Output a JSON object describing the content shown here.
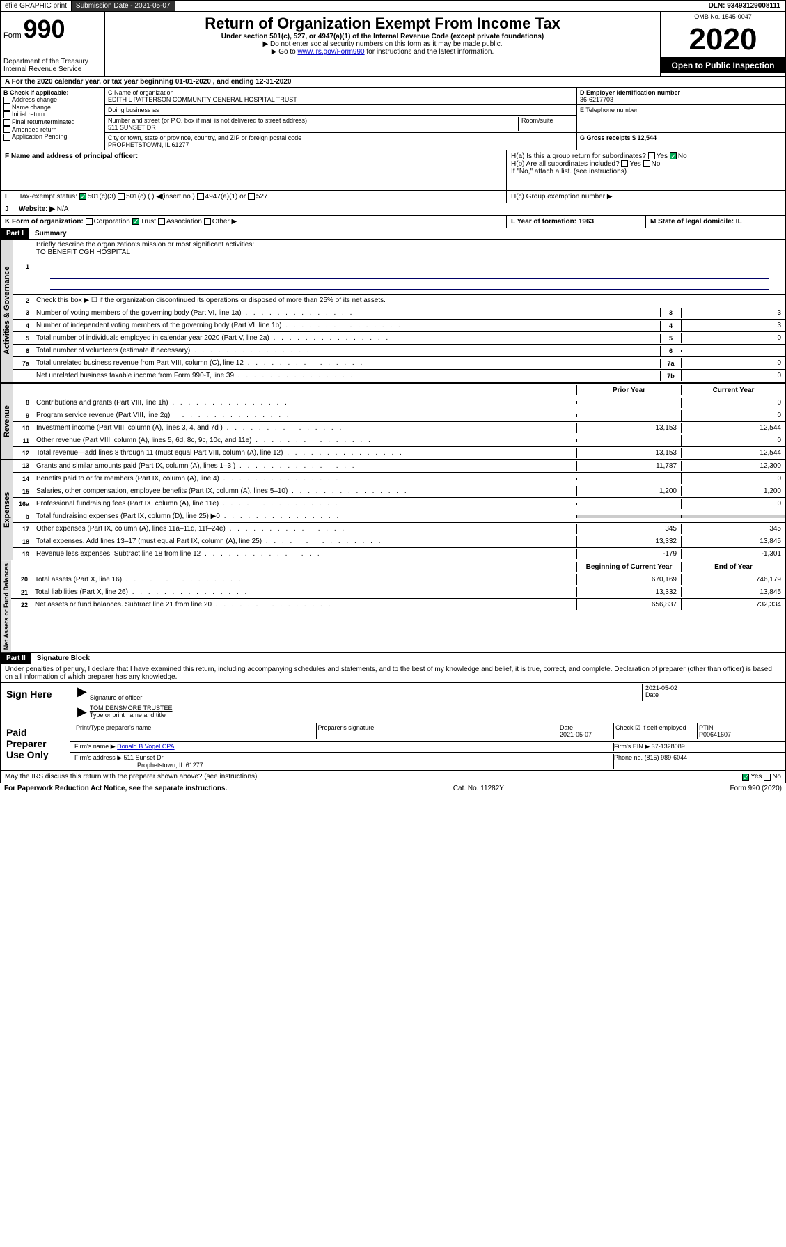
{
  "topbar": {
    "efile": "efile GRAPHIC print",
    "submission": "Submission Date - 2021-05-07",
    "dln": "DLN: 93493129008111"
  },
  "header": {
    "form_label": "Form",
    "form_num": "990",
    "dept": "Department of the Treasury\nInternal Revenue Service",
    "title": "Return of Organization Exempt From Income Tax",
    "subtitle": "Under section 501(c), 527, or 4947(a)(1) of the Internal Revenue Code (except private foundations)",
    "note1": "▶ Do not enter social security numbers on this form as it may be made public.",
    "note2_pre": "▶ Go to ",
    "note2_link": "www.irs.gov/Form990",
    "note2_post": " for instructions and the latest information.",
    "omb": "OMB No. 1545-0047",
    "year": "2020",
    "open": "Open to Public Inspection"
  },
  "sectionA": "A   For the 2020 calendar year, or tax year beginning 01-01-2020    , and ending 12-31-2020",
  "boxB": {
    "label": "B Check if applicable:",
    "items": [
      "Address change",
      "Name change",
      "Initial return",
      "Final return/terminated",
      "Amended return",
      "Application Pending"
    ]
  },
  "boxC": {
    "name_label": "C Name of organization",
    "name": "EDITH L PATTERSON COMMUNITY GENERAL HOSPITAL TRUST",
    "dba": "Doing business as",
    "addr_label": "Number and street (or P.O. box if mail is not delivered to street address)",
    "addr": "511 SUNSET DR",
    "room": "Room/suite",
    "city_label": "City or town, state or province, country, and ZIP or foreign postal code",
    "city": "PROPHETSTOWN, IL  61277"
  },
  "boxD": {
    "label": "D Employer identification number",
    "value": "36-6217703"
  },
  "boxE": {
    "label": "E Telephone number"
  },
  "boxG": {
    "label": "G Gross receipts $ 12,544"
  },
  "boxF": "F  Name and address of principal officer:",
  "boxH": {
    "ha": "H(a)  Is this a group return for subordinates?",
    "hb": "H(b)  Are all subordinates included?",
    "hb_note": "If \"No,\" attach a list. (see instructions)",
    "hc": "H(c)  Group exemption number ▶",
    "yes": "Yes",
    "no": "No"
  },
  "boxI": {
    "label": "Tax-exempt status:",
    "opts": [
      "501(c)(3)",
      "501(c) (  ) ◀(insert no.)",
      "4947(a)(1) or",
      "527"
    ]
  },
  "boxJ": {
    "label": "Website: ▶",
    "value": "N/A"
  },
  "boxK": {
    "label": "K Form of organization:",
    "opts": [
      "Corporation",
      "Trust",
      "Association",
      "Other ▶"
    ]
  },
  "boxL": {
    "label": "L Year of formation: 1963"
  },
  "boxM": {
    "label": "M State of legal domicile: IL"
  },
  "part1": {
    "header": "Part I",
    "title": "Summary",
    "line1": "Briefly describe the organization's mission or most significant activities:",
    "mission": "TO BENEFIT CGH HOSPITAL",
    "line2": "Check this box ▶ ☐  if the organization discontinued its operations or disposed of more than 25% of its net assets.",
    "lines_gov": [
      {
        "n": "3",
        "t": "Number of voting members of the governing body (Part VI, line 1a)",
        "b": "3",
        "v": "3"
      },
      {
        "n": "4",
        "t": "Number of independent voting members of the governing body (Part VI, line 1b)",
        "b": "4",
        "v": "3"
      },
      {
        "n": "5",
        "t": "Total number of individuals employed in calendar year 2020 (Part V, line 2a)",
        "b": "5",
        "v": "0"
      },
      {
        "n": "6",
        "t": "Total number of volunteers (estimate if necessary)",
        "b": "6",
        "v": ""
      },
      {
        "n": "7a",
        "t": "Total unrelated business revenue from Part VIII, column (C), line 12",
        "b": "7a",
        "v": "0"
      },
      {
        "n": "",
        "t": "Net unrelated business taxable income from Form 990-T, line 39",
        "b": "7b",
        "v": "0"
      }
    ],
    "col_prior": "Prior Year",
    "col_current": "Current Year",
    "revenue": [
      {
        "n": "8",
        "t": "Contributions and grants (Part VIII, line 1h)",
        "p": "",
        "c": "0"
      },
      {
        "n": "9",
        "t": "Program service revenue (Part VIII, line 2g)",
        "p": "",
        "c": "0"
      },
      {
        "n": "10",
        "t": "Investment income (Part VIII, column (A), lines 3, 4, and 7d )",
        "p": "13,153",
        "c": "12,544"
      },
      {
        "n": "11",
        "t": "Other revenue (Part VIII, column (A), lines 5, 6d, 8c, 9c, 10c, and 11e)",
        "p": "",
        "c": "0"
      },
      {
        "n": "12",
        "t": "Total revenue—add lines 8 through 11 (must equal Part VIII, column (A), line 12)",
        "p": "13,153",
        "c": "12,544"
      }
    ],
    "expenses": [
      {
        "n": "13",
        "t": "Grants and similar amounts paid (Part IX, column (A), lines 1–3 )",
        "p": "11,787",
        "c": "12,300"
      },
      {
        "n": "14",
        "t": "Benefits paid to or for members (Part IX, column (A), line 4)",
        "p": "",
        "c": "0"
      },
      {
        "n": "15",
        "t": "Salaries, other compensation, employee benefits (Part IX, column (A), lines 5–10)",
        "p": "1,200",
        "c": "1,200"
      },
      {
        "n": "16a",
        "t": "Professional fundraising fees (Part IX, column (A), line 11e)",
        "p": "",
        "c": "0"
      },
      {
        "n": "b",
        "t": "Total fundraising expenses (Part IX, column (D), line 25) ▶0",
        "p": "—",
        "c": "—"
      },
      {
        "n": "17",
        "t": "Other expenses (Part IX, column (A), lines 11a–11d, 11f–24e)",
        "p": "345",
        "c": "345"
      },
      {
        "n": "18",
        "t": "Total expenses. Add lines 13–17 (must equal Part IX, column (A), line 25)",
        "p": "13,332",
        "c": "13,845"
      },
      {
        "n": "19",
        "t": "Revenue less expenses. Subtract line 18 from line 12",
        "p": "-179",
        "c": "-1,301"
      }
    ],
    "col_begin": "Beginning of Current Year",
    "col_end": "End of Year",
    "netassets": [
      {
        "n": "20",
        "t": "Total assets (Part X, line 16)",
        "p": "670,169",
        "c": "746,179"
      },
      {
        "n": "21",
        "t": "Total liabilities (Part X, line 26)",
        "p": "13,332",
        "c": "13,845"
      },
      {
        "n": "22",
        "t": "Net assets or fund balances. Subtract line 21 from line 20",
        "p": "656,837",
        "c": "732,334"
      }
    ],
    "vert_gov": "Activities & Governance",
    "vert_rev": "Revenue",
    "vert_exp": "Expenses",
    "vert_net": "Net Assets or Fund Balances"
  },
  "part2": {
    "header": "Part II",
    "title": "Signature Block",
    "perjury": "Under penalties of perjury, I declare that I have examined this return, including accompanying schedules and statements, and to the best of my knowledge and belief, it is true, correct, and complete. Declaration of preparer (other than officer) is based on all information of which preparer has any knowledge.",
    "sign_here": "Sign Here",
    "sig_officer": "Signature of officer",
    "sig_date": "2021-05-02",
    "date_label": "Date",
    "officer_name": "TOM DENSMORE  TRUSTEE",
    "type_name": "Type or print name and title",
    "paid": "Paid Preparer Use Only",
    "prep_name_label": "Print/Type preparer's name",
    "prep_sig_label": "Preparer's signature",
    "prep_date_label": "Date",
    "prep_date": "2021-05-07",
    "check_if": "Check ☑ if self-employed",
    "ptin_label": "PTIN",
    "ptin": "P00641607",
    "firm_name_label": "Firm's name    ▶",
    "firm_name": "Donald B Vogel CPA",
    "firm_ein_label": "Firm's EIN ▶",
    "firm_ein": "37-1328089",
    "firm_addr_label": "Firm's address ▶",
    "firm_addr": "511 Sunset Dr",
    "firm_city": "Prophetstown, IL  61277",
    "phone_label": "Phone no.",
    "phone": "(815) 989-6044",
    "discuss": "May the IRS discuss this return with the preparer shown above? (see instructions)",
    "yes": "Yes",
    "no": "No"
  },
  "footer": {
    "paperwork": "For Paperwork Reduction Act Notice, see the separate instructions.",
    "cat": "Cat. No. 11282Y",
    "form": "Form 990 (2020)"
  }
}
